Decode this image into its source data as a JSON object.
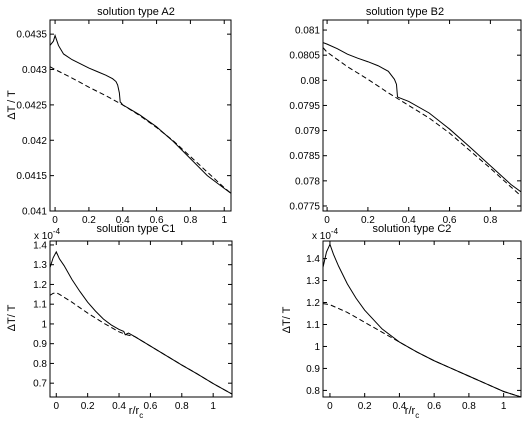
{
  "chart_data": [
    {
      "type": "line",
      "title": "solution type A2",
      "xlabel": "",
      "ylabel": "ΔT / T",
      "xlim": [
        -0.03,
        1.04
      ],
      "ylim": [
        0.041,
        0.0437
      ],
      "exponent": "",
      "xticks": [
        0,
        0.2,
        0.4,
        0.6,
        0.8,
        1
      ],
      "xtick_labels": [
        "0",
        "0.2",
        "0.4",
        "0.6",
        "0.8",
        "1"
      ],
      "yticks": [
        0.041,
        0.0415,
        0.042,
        0.0425,
        0.043,
        0.0435
      ],
      "ytick_labels": [
        "0.041",
        "0.0415",
        "0.042",
        "0.0425",
        "0.043",
        "0.0435"
      ],
      "series": [
        {
          "style": "solid",
          "x": [
            -0.03,
            -0.01,
            0.0,
            0.02,
            0.05,
            0.1,
            0.15,
            0.2,
            0.25,
            0.3,
            0.34,
            0.36,
            0.37,
            0.38,
            0.385,
            0.39,
            0.4,
            0.5,
            0.6,
            0.7,
            0.8,
            0.9,
            1.0,
            1.04
          ],
          "y": [
            0.04334,
            0.0434,
            0.04348,
            0.04334,
            0.04322,
            0.04314,
            0.04308,
            0.04302,
            0.04297,
            0.04292,
            0.04287,
            0.04283,
            0.04278,
            0.04267,
            0.04254,
            0.04253,
            0.0425,
            0.04236,
            0.04219,
            0.04198,
            0.04174,
            0.0415,
            0.04132,
            0.04125
          ]
        },
        {
          "style": "dashed",
          "x": [
            -0.03,
            0.0,
            0.1,
            0.2,
            0.3,
            0.4,
            0.5,
            0.6,
            0.7,
            0.8,
            0.9,
            1.0,
            1.04
          ],
          "y": [
            0.04304,
            0.043,
            0.04288,
            0.04275,
            0.04263,
            0.0425,
            0.04235,
            0.04218,
            0.04199,
            0.04177,
            0.04155,
            0.04133,
            0.04125
          ]
        }
      ]
    },
    {
      "type": "line",
      "title": "solution type B2",
      "xlabel": "",
      "ylabel": "",
      "xlim": [
        -0.02,
        0.95
      ],
      "ylim": [
        0.0774,
        0.0812
      ],
      "exponent": "",
      "xticks": [
        0,
        0.2,
        0.4,
        0.6,
        0.8
      ],
      "xtick_labels": [
        "0",
        "0.2",
        "0.4",
        "0.6",
        "0.8"
      ],
      "yticks": [
        0.0775,
        0.078,
        0.0785,
        0.079,
        0.0795,
        0.08,
        0.0805,
        0.081
      ],
      "ytick_labels": [
        "0.0775",
        "0.078",
        "0.0785",
        "0.079",
        "0.0795",
        "0.08",
        "0.0805",
        "0.081"
      ],
      "series": [
        {
          "style": "solid",
          "x": [
            -0.02,
            0.0,
            0.05,
            0.1,
            0.15,
            0.2,
            0.25,
            0.3,
            0.33,
            0.34,
            0.345,
            0.35,
            0.4,
            0.5,
            0.6,
            0.7,
            0.8,
            0.9,
            0.95
          ],
          "y": [
            0.08075,
            0.08072,
            0.08063,
            0.08052,
            0.08044,
            0.08037,
            0.08029,
            0.08018,
            0.08002,
            0.07992,
            0.07967,
            0.07966,
            0.07958,
            0.07935,
            0.07903,
            0.07867,
            0.0783,
            0.07793,
            0.07778
          ]
        },
        {
          "style": "dashed",
          "x": [
            -0.02,
            0.0,
            0.1,
            0.2,
            0.3,
            0.4,
            0.5,
            0.6,
            0.7,
            0.8,
            0.9,
            0.95
          ],
          "y": [
            0.08065,
            0.08056,
            0.08027,
            0.08002,
            0.07975,
            0.0795,
            0.07925,
            0.07895,
            0.0786,
            0.07825,
            0.07788,
            0.0777
          ]
        }
      ]
    },
    {
      "type": "line",
      "title": "solution type C1",
      "xlabel": "r/r_c",
      "ylabel": "ΔT/ T",
      "xlim": [
        -0.04,
        1.12
      ],
      "ylim": [
        6.3e-05,
        0.000142
      ],
      "exponent": "x 10^-4",
      "xticks": [
        0,
        0.2,
        0.4,
        0.6,
        0.8,
        1
      ],
      "xtick_labels": [
        "0",
        "0.2",
        "0.4",
        "0.6",
        "0.8",
        "1"
      ],
      "yticks": [
        7e-05,
        8e-05,
        9e-05,
        0.0001,
        0.00011,
        0.00012,
        0.00013,
        0.00014
      ],
      "ytick_labels": [
        "0.7",
        "0.8",
        "0.9",
        "1",
        "1.1",
        "1.2",
        "1.3",
        "1.4"
      ],
      "series": [
        {
          "style": "solid",
          "x": [
            -0.04,
            -0.02,
            0.0,
            0.02,
            0.05,
            0.1,
            0.15,
            0.2,
            0.25,
            0.3,
            0.35,
            0.4,
            0.43,
            0.44,
            0.45,
            0.46,
            0.5,
            0.6,
            0.7,
            0.8,
            0.9,
            1.0,
            1.12
          ],
          "y": [
            0.0001285,
            0.0001335,
            0.0001365,
            0.000133,
            0.0001295,
            0.0001225,
            0.0001165,
            0.000111,
            0.0001065,
            0.0001025,
            9.95e-05,
            9.72e-05,
            9.62e-05,
            9.45e-05,
            9.5e-05,
            9.54e-05,
            9.36e-05,
            8.88e-05,
            8.4e-05,
            7.92e-05,
            7.46e-05,
            6.98e-05,
            6.45e-05
          ]
        },
        {
          "style": "dashed",
          "x": [
            -0.04,
            -0.02,
            0.0,
            0.02,
            0.1,
            0.2,
            0.3,
            0.4,
            0.45,
            0.5,
            0.6,
            0.7,
            0.8,
            0.9,
            1.0,
            1.12
          ],
          "y": [
            0.0001145,
            0.0001155,
            0.0001158,
            0.000115,
            0.000111,
            0.0001055,
            0.0001005,
            9.6e-05,
            9.45e-05,
            9.36e-05,
            8.88e-05,
            8.4e-05,
            7.92e-05,
            7.46e-05,
            6.98e-05,
            6.45e-05
          ]
        }
      ]
    },
    {
      "type": "line",
      "title": "solution type C2",
      "xlabel": "r/r_c",
      "ylabel": "ΔT/ T",
      "xlim": [
        -0.04,
        1.1
      ],
      "ylim": [
        7.7e-05,
        0.000148
      ],
      "exponent": "x 10^-4",
      "xticks": [
        0,
        0.2,
        0.4,
        0.6,
        0.8,
        1
      ],
      "xtick_labels": [
        "0",
        "0.2",
        "0.4",
        "0.6",
        "0.8",
        "1"
      ],
      "yticks": [
        8e-05,
        9e-05,
        0.0001,
        0.00011,
        0.00012,
        0.00013,
        0.00014
      ],
      "ytick_labels": [
        "0.8",
        "0.9",
        "1",
        "1.1",
        "1.2",
        "1.3",
        "1.4"
      ],
      "series": [
        {
          "style": "solid",
          "x": [
            -0.04,
            -0.02,
            0.0,
            0.02,
            0.05,
            0.1,
            0.15,
            0.2,
            0.3,
            0.4,
            0.5,
            0.6,
            0.7,
            0.8,
            0.9,
            1.0,
            1.1
          ],
          "y": [
            0.000136,
            0.000143,
            0.0001465,
            0.000142,
            0.0001365,
            0.0001285,
            0.000122,
            0.0001165,
            0.000108,
            0.000102,
            9.75e-05,
            9.35e-05,
            9e-05,
            8.65e-05,
            8.3e-05,
            7.95e-05,
            7.7e-05
          ]
        },
        {
          "style": "dashed",
          "x": [
            -0.04,
            0.0,
            0.1,
            0.2,
            0.3,
            0.4,
            0.5,
            0.6,
            0.7,
            0.8,
            0.9,
            1.0,
            1.1
          ],
          "y": [
            0.0001195,
            0.000119,
            0.0001155,
            0.000111,
            0.0001065,
            0.000102,
            9.75e-05,
            9.35e-05,
            9e-05,
            8.65e-05,
            8.3e-05,
            7.95e-05,
            7.7e-05
          ]
        }
      ]
    }
  ]
}
